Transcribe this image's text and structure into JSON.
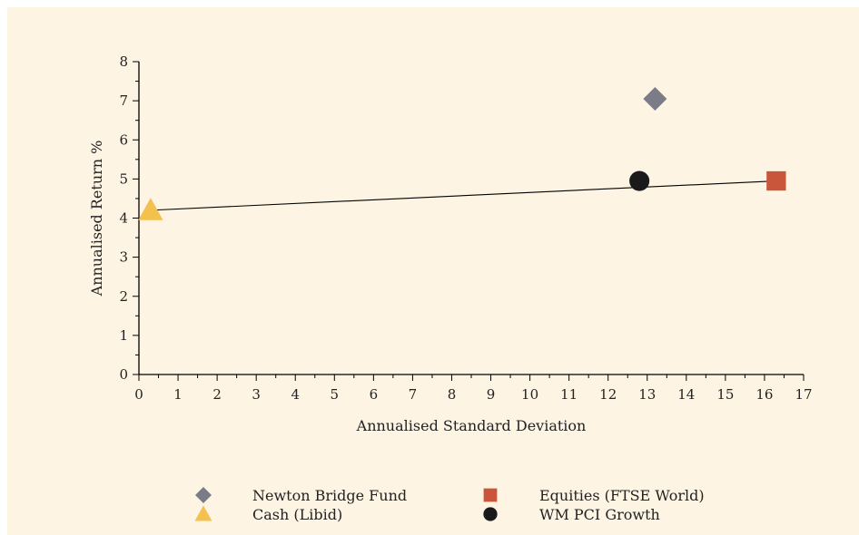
{
  "chart_data": {
    "type": "scatter",
    "title": "",
    "xlabel": "Annualised Standard Deviation",
    "ylabel": "Annualised Return %",
    "xlim": [
      0,
      17
    ],
    "ylim": [
      0,
      8
    ],
    "x_ticks": [
      0,
      1,
      2,
      3,
      4,
      5,
      6,
      7,
      8,
      9,
      10,
      11,
      12,
      13,
      14,
      15,
      16,
      17
    ],
    "y_ticks": [
      0,
      1,
      2,
      3,
      4,
      5,
      6,
      7,
      8
    ],
    "grid": false,
    "legend_position": "bottom",
    "series": [
      {
        "name": "Newton Bridge Fund",
        "marker": "diamond",
        "color": "#7a7c88",
        "points": [
          {
            "x": 13.2,
            "y": 7.05
          }
        ]
      },
      {
        "name": "Equities (FTSE World)",
        "marker": "square",
        "color": "#c9553a",
        "points": [
          {
            "x": 16.3,
            "y": 4.95
          }
        ]
      },
      {
        "name": "Cash (Libid)",
        "marker": "triangle",
        "color": "#f2c14e",
        "points": [
          {
            "x": 0.3,
            "y": 4.2
          }
        ]
      },
      {
        "name": "WM PCI Growth",
        "marker": "circle",
        "color": "#1a1a1a",
        "points": [
          {
            "x": 12.8,
            "y": 4.95
          }
        ]
      }
    ],
    "trend_line": {
      "color": "#000000",
      "points": [
        {
          "x": 0.3,
          "y": 4.2
        },
        {
          "x": 16.3,
          "y": 4.95
        }
      ]
    }
  }
}
